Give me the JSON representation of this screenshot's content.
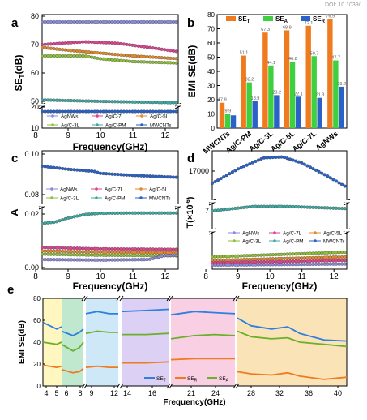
{
  "doi": "DOI: 10.1039/",
  "common": {
    "legend_labels": [
      "AgNWs",
      "Ag/C-7L",
      "Ag/C-5L",
      "Ag/C-3L",
      "Ag/C-PM",
      "MWCNTs"
    ],
    "colors": {
      "AgNWs": "#8a8ad8",
      "Ag/C-7L": "#d9468f",
      "Ag/C-5L": "#e08a2e",
      "Ag/C-3L": "#8fbf3a",
      "Ag/C-PM": "#3fa8a0",
      "MWCNTs": "#2a62c7"
    },
    "freq_ticks": [
      "8",
      "9",
      "10",
      "11",
      "12"
    ],
    "freq_xlabel": "Frequency(GHz)"
  },
  "chart_data": [
    {
      "panel": "a",
      "type": "line",
      "xlabel": "Frequency(GHz)",
      "ylabel": "SET(dB)",
      "ylabel_main": "SE",
      "ylabel_sub": "T",
      "ylabel_unit": "(dB)",
      "xlim": [
        8.2,
        12.4
      ],
      "broken_y": true,
      "yticks_upper": [
        "50",
        "60",
        "70",
        "80"
      ],
      "yticks_lower": [
        "10",
        "20"
      ],
      "series": [
        {
          "name": "AgNWs",
          "values": [
            [
              8.2,
              78
            ],
            [
              12.4,
              78
            ]
          ]
        },
        {
          "name": "Ag/C-7L",
          "values": [
            [
              8.2,
              70
            ],
            [
              9.5,
              71
            ],
            [
              10.5,
              70.5
            ],
            [
              11.5,
              69
            ],
            [
              12.4,
              67.5
            ]
          ]
        },
        {
          "name": "Ag/C-5L",
          "values": [
            [
              8.2,
              69
            ],
            [
              9,
              68
            ],
            [
              10,
              67
            ],
            [
              11,
              66
            ],
            [
              12.4,
              65
            ]
          ]
        },
        {
          "name": "Ag/C-3L",
          "values": [
            [
              8.2,
              66
            ],
            [
              9.5,
              66
            ],
            [
              10,
              65
            ],
            [
              11,
              64
            ],
            [
              12.4,
              63.5
            ]
          ]
        },
        {
          "name": "Ag/C-PM",
          "values": [
            [
              8.2,
              50.5
            ],
            [
              10,
              50
            ],
            [
              12.4,
              49.5
            ]
          ]
        },
        {
          "name": "MWCNTs",
          "values": [
            [
              8.2,
              17.9
            ],
            [
              12.4,
              17.9
            ]
          ]
        }
      ]
    },
    {
      "panel": "b",
      "type": "bar",
      "ylabel": "EMI SE(dB)",
      "categories": [
        "MWCNTs",
        "Ag/C-PM",
        "Ag/C-3L",
        "Ag/C-5L",
        "Ag/C-7L",
        "AgNWs"
      ],
      "ylim": [
        0,
        80
      ],
      "yticks": [
        "0",
        "10",
        "20",
        "30",
        "40",
        "50",
        "60",
        "70",
        "80"
      ],
      "legend": [
        "SET",
        "SEA",
        "SER"
      ],
      "series": [
        {
          "name": "SET",
          "color": "#f07a1e",
          "values": [
            17.9,
            51.1,
            67.3,
            68.9,
            72.1,
            76.9
          ]
        },
        {
          "name": "SEA",
          "color": "#3fd03f",
          "values": [
            9.9,
            32.2,
            44.1,
            46.8,
            50.7,
            47.7
          ]
        },
        {
          "name": "SER",
          "color": "#2a62c7",
          "values": [
            9,
            18.9,
            23.2,
            22.1,
            21.3,
            29.2
          ]
        }
      ],
      "labels_SET": [
        "17.9",
        "51.1",
        "67.3",
        "68.9",
        "72.1",
        "76.9"
      ],
      "labels_SEA": [
        "9.9",
        "32.2",
        "44.1",
        "46.8",
        "50.7",
        "47.7"
      ],
      "labels_SER": [
        "",
        "18.9",
        "23.2",
        "22.1",
        "21.3",
        "29.2"
      ]
    },
    {
      "panel": "c",
      "type": "line",
      "xlabel": "Frequency(GHz)",
      "ylabel": "A",
      "xlim": [
        8.2,
        12.4
      ],
      "broken_y": true,
      "yticks_upper": [
        "0.08",
        "0.10"
      ],
      "yticks_lower": [
        "0.00",
        "0.02"
      ],
      "series": [
        {
          "name": "MWCNTs",
          "values": [
            [
              8.2,
              0.094
            ],
            [
              9,
              0.0925
            ],
            [
              9.8,
              0.0915
            ],
            [
              10,
              0.0905
            ],
            [
              11,
              0.0895
            ],
            [
              12.4,
              0.0885
            ]
          ]
        },
        {
          "name": "Ag/C-PM",
          "values": [
            [
              8.2,
              0.0165
            ],
            [
              8.6,
              0.017
            ],
            [
              9.0,
              0.0185
            ],
            [
              9.5,
              0.0198
            ],
            [
              10,
              0.0203
            ],
            [
              11,
              0.0204
            ],
            [
              12.4,
              0.0204
            ]
          ]
        },
        {
          "name": "Ag/C-7L",
          "values": [
            [
              8.2,
              0.0075
            ],
            [
              10,
              0.007
            ],
            [
              12.4,
              0.0068
            ]
          ]
        },
        {
          "name": "Ag/C-5L",
          "values": [
            [
              8.2,
              0.0062
            ],
            [
              10,
              0.0058
            ],
            [
              12.4,
              0.0055
            ]
          ]
        },
        {
          "name": "Ag/C-3L",
          "values": [
            [
              8.2,
              0.005
            ],
            [
              10,
              0.0046
            ],
            [
              12.4,
              0.0044
            ]
          ]
        },
        {
          "name": "AgNWs",
          "values": [
            [
              8.2,
              0.003
            ],
            [
              10,
              0.0028
            ],
            [
              11.5,
              0.003
            ],
            [
              12,
              0.0045
            ],
            [
              12.4,
              0.0045
            ]
          ]
        }
      ]
    },
    {
      "panel": "d",
      "type": "line",
      "xlabel": "Frequency(GHz)",
      "ylabel": "T(×10⁻⁶)",
      "ylabel_main": "T(×10",
      "ylabel_sup": "-6",
      "ylabel_close": ")",
      "xlim": [
        8.2,
        12.4
      ],
      "broken_y": true,
      "yticks": [
        "17000",
        "7"
      ],
      "series": [
        {
          "name": "MWCNTs",
          "values": [
            [
              8.2,
              15800
            ],
            [
              9,
              17200
            ],
            [
              9.8,
              18300
            ],
            [
              10.4,
              18400
            ],
            [
              11,
              17800
            ],
            [
              11.8,
              16500
            ],
            [
              12.4,
              15400
            ]
          ]
        },
        {
          "name": "Ag/C-PM",
          "values": [
            [
              8.2,
              7.0
            ],
            [
              9.5,
              7.6
            ],
            [
              10.5,
              7.6
            ],
            [
              12.4,
              7.3
            ]
          ]
        },
        {
          "name": "Ag/C-3L",
          "values": [
            [
              8.2,
              0.9
            ],
            [
              12.4,
              1.3
            ]
          ]
        },
        {
          "name": "Ag/C-5L",
          "values": [
            [
              8.2,
              0.6
            ],
            [
              12.4,
              0.9
            ]
          ]
        },
        {
          "name": "Ag/C-7L",
          "values": [
            [
              8.2,
              0.4
            ],
            [
              12.4,
              0.6
            ]
          ]
        },
        {
          "name": "AgNWs",
          "values": [
            [
              8.2,
              0.2
            ],
            [
              12.4,
              0.3
            ]
          ]
        }
      ]
    },
    {
      "panel": "e",
      "type": "line",
      "xlabel": "Frequency(GHz)",
      "ylabel": "EMI SE(dB)",
      "ylim": [
        0,
        80
      ],
      "yticks": [
        "0",
        "20",
        "40",
        "60",
        "80"
      ],
      "legend": [
        "SET",
        "SER",
        "SEA"
      ],
      "band_ticks": [
        [
          "4",
          "5"
        ],
        [
          "6",
          "8"
        ],
        [
          "9",
          "12"
        ],
        [
          "14",
          "16"
        ],
        [
          "21",
          "24"
        ],
        [
          "28",
          "32",
          "36",
          "40"
        ]
      ],
      "band_colors": [
        "#fff7bf",
        "#bfe8cf",
        "#cfe8f7",
        "#ddd0f5",
        "#f9cfe3",
        "#fbe3b8"
      ],
      "series_colors": {
        "SET": "#2d7fe0",
        "SER": "#f07a1e",
        "SEA": "#6ab02a"
      }
    }
  ]
}
